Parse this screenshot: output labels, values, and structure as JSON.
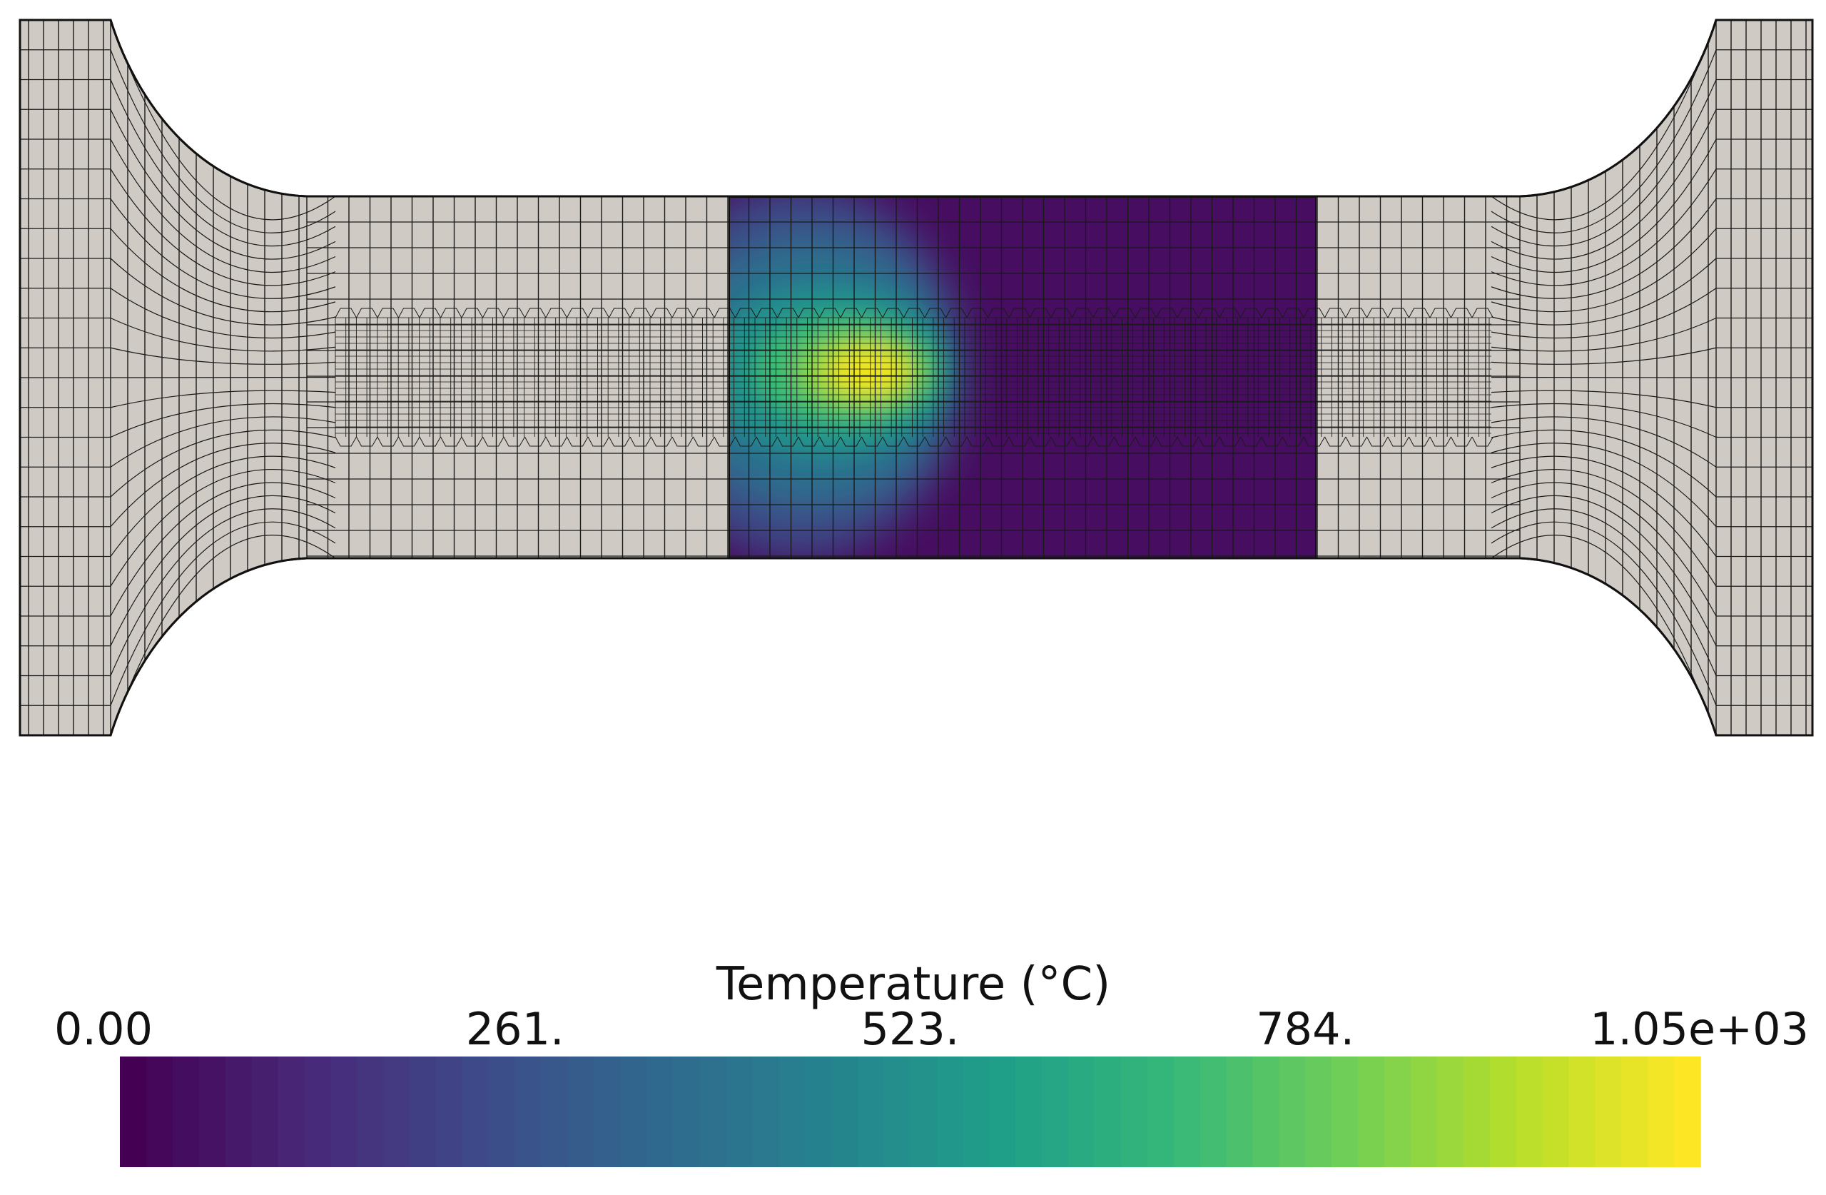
{
  "colorbar": {
    "title": "Temperature (°C)",
    "ticks": [
      "0.00",
      "261.",
      "523.",
      "784.",
      "1.05e+03"
    ],
    "range": [
      0,
      1050
    ],
    "colormap": "viridis",
    "stops": [
      "#440154",
      "#482878",
      "#3e4a89",
      "#31688e",
      "#26828e",
      "#1f9e89",
      "#35b779",
      "#6ece58",
      "#b5de2b",
      "#fde725"
    ]
  },
  "mesh": {
    "base_color": "#cfcbc4",
    "line_color": "#1a1a1a",
    "heated_region_background": "#470d60",
    "hotspot_peak_value": 1050
  }
}
